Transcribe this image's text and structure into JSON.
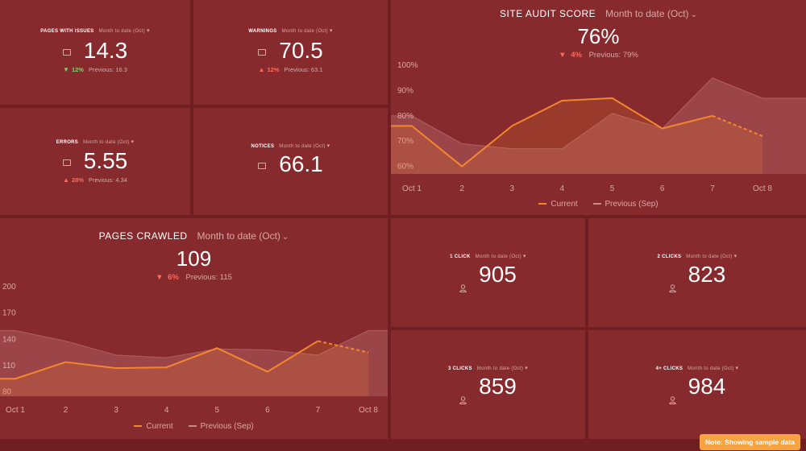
{
  "colors": {
    "accent": "#f2872f",
    "previous": "#c58b8b",
    "increase_good": "#7ed36a",
    "decrease_bad": "#ff6b5b"
  },
  "kpis": {
    "pages_with_issues": {
      "title": "PAGES WITH ISSUES",
      "period": "Month to date (Oct)",
      "value": "14.3",
      "arrow": "▼",
      "delta": "12%",
      "previous": "Previous: 16.3"
    },
    "warnings": {
      "title": "WARNINGS",
      "period": "Month to date (Oct)",
      "value": "70.5",
      "arrow": "▲",
      "delta": "12%",
      "previous": "Previous: 63.1"
    },
    "errors": {
      "title": "ERRORS",
      "period": "Month to date (Oct)",
      "value": "5.55",
      "arrow": "▲",
      "delta": "28%",
      "previous": "Previous: 4.34"
    },
    "notices": {
      "title": "NOTICES",
      "period": "Month to date (Oct)",
      "value": "66.1"
    },
    "click1": {
      "title": "1 CLICK",
      "period": "Month to date (Oct)",
      "value": "905"
    },
    "click2": {
      "title": "2 CLICKS",
      "period": "Month to date (Oct)",
      "value": "823"
    },
    "click3": {
      "title": "3 CLICKS",
      "period": "Month to date (Oct)",
      "value": "859"
    },
    "click4": {
      "title": "4+ CLICKS",
      "period": "Month to date (Oct)",
      "value": "984"
    }
  },
  "site_audit": {
    "title": "SITE AUDIT SCORE",
    "period": "Month to date (Oct)",
    "value": "76%",
    "arrow": "▼",
    "delta": "4%",
    "previous": "Previous: 79%"
  },
  "pages_crawled": {
    "title": "PAGES CRAWLED",
    "period": "Month to date (Oct)",
    "value": "109",
    "arrow": "▼",
    "delta": "6%",
    "previous": "Previous: 115"
  },
  "legend": {
    "current": "Current",
    "previous": "Previous (Sep)"
  },
  "note": "Note: Showing sample data",
  "chart_data": [
    {
      "type": "line",
      "title": "SITE AUDIT SCORE",
      "categories": [
        "Oct 1",
        "2",
        "3",
        "4",
        "5",
        "6",
        "7",
        "Oct 8"
      ],
      "y_tick_labels": [
        "100%",
        "90%",
        "80%",
        "70%",
        "60%"
      ],
      "ylim": [
        57,
        100
      ],
      "series": [
        {
          "name": "Current",
          "values": [
            76,
            60,
            76,
            86,
            87,
            75,
            80,
            72
          ],
          "dashed_from_index": 6
        },
        {
          "name": "Previous (Sep)",
          "values": [
            80,
            69,
            67,
            67,
            81,
            75,
            95,
            87
          ]
        }
      ],
      "legend_position": "bottom"
    },
    {
      "type": "line",
      "title": "PAGES CRAWLED",
      "categories": [
        "Oct 1",
        "2",
        "3",
        "4",
        "5",
        "6",
        "7",
        "Oct 8"
      ],
      "y_tick_labels": [
        "200",
        "170",
        "140",
        "110",
        "80"
      ],
      "ylim": [
        75,
        200
      ],
      "series": [
        {
          "name": "Current",
          "values": [
            95,
            114,
            107,
            108,
            130,
            103,
            138,
            125
          ],
          "dashed_from_index": 6
        },
        {
          "name": "Previous (Sep)",
          "values": [
            150,
            138,
            122,
            119,
            129,
            128,
            122,
            150
          ]
        }
      ],
      "legend_position": "bottom"
    }
  ]
}
